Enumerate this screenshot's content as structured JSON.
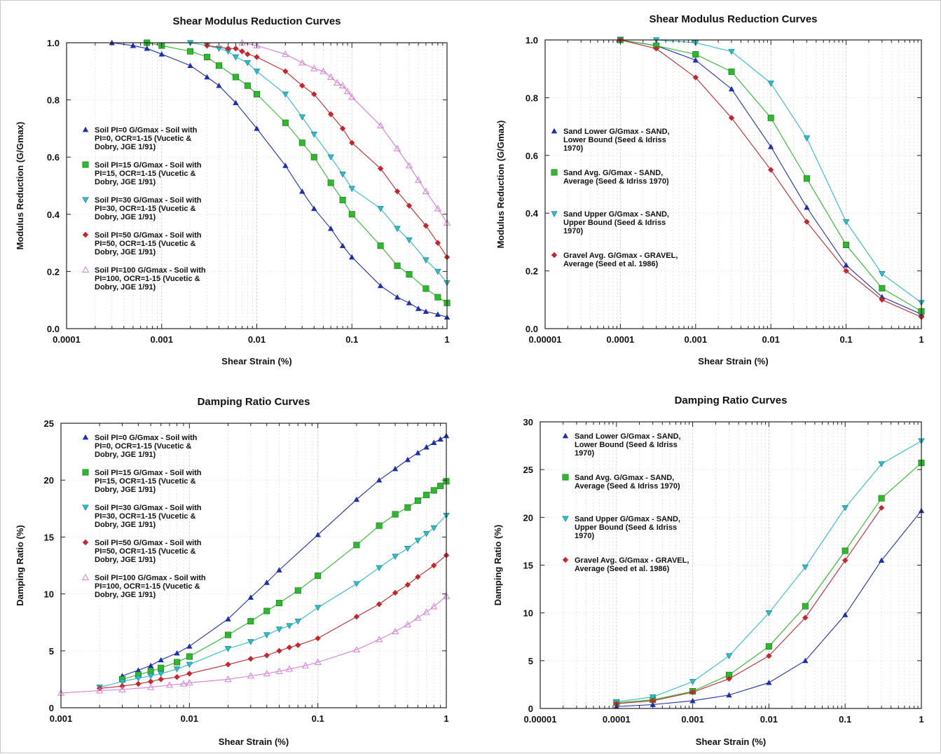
{
  "chart_data": [
    {
      "type": "line",
      "title": "Shear Modulus Reduction Curves",
      "xlabel": "Shear Strain (%)",
      "ylabel": "Modulus Reduction (G/Gmax)",
      "x_scale": "log",
      "xlim": [
        0.0001,
        1
      ],
      "ylim": [
        0,
        1
      ],
      "x_ticks": [
        "0.0001",
        "0.001",
        "0.01",
        "0.1",
        "1"
      ],
      "y_ticks": [
        "0.0",
        "0.2",
        "0.4",
        "0.6",
        "0.8",
        "1.0"
      ],
      "legend_position": "left",
      "grid": true,
      "series": [
        {
          "name": "Soil PI=0",
          "legend": [
            "Soil PI=0  G/Gmax - Soil with",
            "PI=0, OCR=1-15 (Vucetic &",
            "Dobry, JGE 1/91)"
          ],
          "color": "#1f2fa8",
          "marker": "triangle-up",
          "x": [
            0.0003,
            0.0005,
            0.0007,
            0.001,
            0.002,
            0.003,
            0.004,
            0.006,
            0.01,
            0.02,
            0.03,
            0.04,
            0.06,
            0.08,
            0.1,
            0.2,
            0.3,
            0.4,
            0.5,
            0.6,
            0.8,
            1.0
          ],
          "y": [
            1.0,
            0.99,
            0.98,
            0.96,
            0.92,
            0.88,
            0.85,
            0.79,
            0.7,
            0.57,
            0.48,
            0.42,
            0.35,
            0.29,
            0.25,
            0.15,
            0.11,
            0.09,
            0.07,
            0.06,
            0.05,
            0.04
          ]
        },
        {
          "name": "Soil PI=15",
          "legend": [
            "Soil PI=15  G/Gmax - Soil with",
            "PI=15, OCR=1-15 (Vucetic &",
            "Dobry, JGE 1/91)"
          ],
          "color": "#2fb82f",
          "marker": "square",
          "x": [
            0.0007,
            0.001,
            0.002,
            0.003,
            0.004,
            0.006,
            0.008,
            0.01,
            0.02,
            0.03,
            0.04,
            0.06,
            0.08,
            0.1,
            0.2,
            0.3,
            0.4,
            0.6,
            0.8,
            1.0
          ],
          "y": [
            1.0,
            0.99,
            0.97,
            0.95,
            0.92,
            0.88,
            0.85,
            0.82,
            0.72,
            0.65,
            0.6,
            0.51,
            0.45,
            0.4,
            0.29,
            0.22,
            0.19,
            0.14,
            0.11,
            0.09
          ]
        },
        {
          "name": "Soil PI=30",
          "legend": [
            "Soil PI=30  G/Gmax - Soil with",
            "PI=30, OCR=1-15 (Vucetic &",
            "Dobry, JGE 1/91)"
          ],
          "color": "#2fbcc8",
          "marker": "triangle-down",
          "x": [
            0.002,
            0.003,
            0.004,
            0.005,
            0.006,
            0.008,
            0.01,
            0.02,
            0.03,
            0.04,
            0.06,
            0.08,
            0.1,
            0.2,
            0.3,
            0.4,
            0.6,
            0.8,
            1.0
          ],
          "y": [
            1.0,
            0.99,
            0.98,
            0.97,
            0.95,
            0.93,
            0.9,
            0.82,
            0.74,
            0.68,
            0.6,
            0.54,
            0.49,
            0.42,
            0.35,
            0.31,
            0.24,
            0.2,
            0.16
          ]
        },
        {
          "name": "Soil PI=50",
          "legend": [
            "Soil PI=50  G/Gmax - Soil with",
            "PI=50, OCR=1-15 (Vucetic &",
            "Dobry, JGE 1/91)"
          ],
          "color": "#c0282d",
          "marker": "diamond",
          "x": [
            0.003,
            0.005,
            0.006,
            0.007,
            0.008,
            0.01,
            0.02,
            0.03,
            0.04,
            0.06,
            0.08,
            0.1,
            0.2,
            0.3,
            0.4,
            0.6,
            0.8,
            1.0
          ],
          "y": [
            0.99,
            0.98,
            0.98,
            0.97,
            0.96,
            0.95,
            0.9,
            0.85,
            0.82,
            0.75,
            0.7,
            0.65,
            0.56,
            0.48,
            0.43,
            0.36,
            0.3,
            0.25
          ]
        },
        {
          "name": "Soil PI=100",
          "legend": [
            "Soil PI=100 G/Gmax - Soil with",
            "PI=100, OCR=1-15 (Vucetic &",
            "Dobry, JGE 1/91)"
          ],
          "color": "#d77fd7",
          "marker": "triangle-up-open",
          "x": [
            0.007,
            0.01,
            0.02,
            0.03,
            0.04,
            0.05,
            0.06,
            0.07,
            0.08,
            0.09,
            0.1,
            0.2,
            0.3,
            0.4,
            0.5,
            0.6,
            0.8,
            1.0
          ],
          "y": [
            1.0,
            0.99,
            0.96,
            0.93,
            0.91,
            0.9,
            0.88,
            0.86,
            0.85,
            0.83,
            0.81,
            0.71,
            0.63,
            0.57,
            0.52,
            0.48,
            0.42,
            0.37
          ]
        }
      ]
    },
    {
      "type": "line",
      "title": "Shear Modulus Reduction Curves",
      "xlabel": "Shear Strain (%)",
      "ylabel": "Modulus Reduction (G/Gmax)",
      "x_scale": "log",
      "xlim": [
        1e-05,
        1
      ],
      "ylim": [
        0,
        1
      ],
      "x_ticks": [
        "0.00001",
        "0.0001",
        "0.001",
        "0.01",
        "0.1",
        "1"
      ],
      "y_ticks": [
        "0.0",
        "0.2",
        "0.4",
        "0.6",
        "0.8",
        "1.0"
      ],
      "legend_position": "left",
      "grid": true,
      "series": [
        {
          "name": "Sand Lower",
          "legend": [
            "Sand Lower  G/Gmax - SAND,",
            "Lower Bound (Seed & Idriss",
            "1970)"
          ],
          "color": "#1f2fa8",
          "marker": "triangle-up",
          "x": [
            0.0001,
            0.0003,
            0.001,
            0.003,
            0.01,
            0.03,
            0.1,
            0.3,
            1.0
          ],
          "y": [
            1.0,
            0.98,
            0.93,
            0.83,
            0.63,
            0.42,
            0.22,
            0.11,
            0.05
          ]
        },
        {
          "name": "Sand Avg.",
          "legend": [
            "Sand Avg.  G/Gmax - SAND,",
            "Average (Seed & Idriss 1970)"
          ],
          "color": "#2fb82f",
          "marker": "square",
          "x": [
            0.0001,
            0.0003,
            0.001,
            0.003,
            0.01,
            0.03,
            0.1,
            0.3,
            1.0
          ],
          "y": [
            1.0,
            0.98,
            0.95,
            0.89,
            0.73,
            0.52,
            0.29,
            0.14,
            0.06
          ]
        },
        {
          "name": "Sand Upper",
          "legend": [
            "Sand Upper  G/Gmax - SAND,",
            "Upper Bound (Seed & Idriss",
            "1970)"
          ],
          "color": "#2fbcc8",
          "marker": "triangle-down",
          "x": [
            0.0001,
            0.0003,
            0.001,
            0.003,
            0.01,
            0.03,
            0.1,
            0.3,
            1.0
          ],
          "y": [
            1.0,
            1.0,
            0.99,
            0.96,
            0.85,
            0.66,
            0.37,
            0.19,
            0.09
          ]
        },
        {
          "name": "Gravel Avg.",
          "legend": [
            "Gravel Avg. G/Gmax - GRAVEL,",
            "Average (Seed et al. 1986)"
          ],
          "color": "#c0282d",
          "marker": "diamond",
          "x": [
            0.0001,
            0.0003,
            0.001,
            0.003,
            0.01,
            0.03,
            0.1,
            0.3,
            1.0
          ],
          "y": [
            1.0,
            0.97,
            0.87,
            0.73,
            0.55,
            0.37,
            0.2,
            0.1,
            0.04
          ]
        }
      ]
    },
    {
      "type": "line",
      "title": "Damping Ratio Curves",
      "xlabel": "Shear Strain (%)",
      "ylabel": "Damping Ratio (%)",
      "x_scale": "log",
      "xlim": [
        0.001,
        1
      ],
      "ylim": [
        0,
        25
      ],
      "x_ticks": [
        "0.001",
        "0.01",
        "0.1",
        "1"
      ],
      "y_ticks": [
        "0",
        "5",
        "10",
        "15",
        "20",
        "25"
      ],
      "legend_position": "top-left",
      "grid": true,
      "series": [
        {
          "name": "Soil PI=0",
          "legend": [
            "Soil PI=0  G/Gmax - Soil with",
            "PI=0, OCR=1-15 (Vucetic &",
            "Dobry, JGE 1/91)"
          ],
          "color": "#1f2fa8",
          "marker": "triangle-up",
          "x": [
            0.003,
            0.004,
            0.005,
            0.006,
            0.008,
            0.01,
            0.02,
            0.03,
            0.04,
            0.05,
            0.1,
            0.2,
            0.3,
            0.4,
            0.5,
            0.6,
            0.7,
            0.8,
            0.9,
            1.0
          ],
          "y": [
            2.8,
            3.3,
            3.7,
            4.2,
            4.8,
            5.4,
            7.8,
            9.7,
            11.0,
            12.1,
            15.2,
            18.3,
            20.0,
            21.0,
            21.8,
            22.4,
            22.9,
            23.3,
            23.6,
            23.9
          ]
        },
        {
          "name": "Soil PI=15",
          "legend": [
            "Soil PI=15  G/Gmax - Soil with",
            "PI=15, OCR=1-15 (Vucetic &",
            "Dobry, JGE 1/91)"
          ],
          "color": "#2fb82f",
          "marker": "square",
          "x": [
            0.003,
            0.004,
            0.005,
            0.006,
            0.008,
            0.01,
            0.02,
            0.03,
            0.04,
            0.05,
            0.07,
            0.1,
            0.2,
            0.3,
            0.4,
            0.5,
            0.6,
            0.7,
            0.8,
            0.9,
            1.0
          ],
          "y": [
            2.5,
            2.9,
            3.2,
            3.5,
            4.0,
            4.5,
            6.4,
            7.6,
            8.5,
            9.2,
            10.3,
            11.6,
            14.3,
            16.0,
            17.0,
            17.6,
            18.2,
            18.7,
            19.1,
            19.5,
            19.9
          ]
        },
        {
          "name": "Soil PI=30",
          "legend": [
            "Soil PI=30  G/Gmax - Soil with",
            "PI=30, OCR=1-15 (Vucetic &",
            "Dobry, JGE 1/91)"
          ],
          "color": "#2fbcc8",
          "marker": "triangle-down",
          "x": [
            0.002,
            0.003,
            0.004,
            0.005,
            0.006,
            0.008,
            0.01,
            0.02,
            0.03,
            0.04,
            0.05,
            0.06,
            0.07,
            0.1,
            0.2,
            0.3,
            0.4,
            0.5,
            0.6,
            0.7,
            0.8,
            1.0
          ],
          "y": [
            1.8,
            2.3,
            2.6,
            2.8,
            3.0,
            3.4,
            3.8,
            5.2,
            5.8,
            6.4,
            6.9,
            7.2,
            7.6,
            8.8,
            10.9,
            12.3,
            13.3,
            14.0,
            14.7,
            15.3,
            15.8,
            16.9
          ]
        },
        {
          "name": "Soil PI=50",
          "legend": [
            "Soil PI=50  G/Gmax - Soil with",
            "PI=50, OCR=1-15 (Vucetic &",
            "Dobry, JGE 1/91)"
          ],
          "color": "#c0282d",
          "marker": "diamond",
          "x": [
            0.002,
            0.003,
            0.004,
            0.005,
            0.006,
            0.008,
            0.01,
            0.02,
            0.03,
            0.04,
            0.05,
            0.06,
            0.07,
            0.1,
            0.2,
            0.3,
            0.4,
            0.5,
            0.6,
            0.8,
            1.0
          ],
          "y": [
            1.7,
            1.9,
            2.1,
            2.3,
            2.5,
            2.7,
            3.0,
            3.8,
            4.3,
            4.6,
            5.0,
            5.3,
            5.5,
            6.1,
            8.0,
            9.1,
            10.1,
            10.8,
            11.5,
            12.5,
            13.4
          ]
        },
        {
          "name": "Soil PI=100",
          "legend": [
            "Soil PI=100 G/Gmax - Soil with",
            "PI=100, OCR=1-15 (Vucetic &",
            "Dobry, JGE 1/91)"
          ],
          "color": "#d77fd7",
          "marker": "triangle-up-open",
          "x": [
            0.001,
            0.002,
            0.003,
            0.005,
            0.007,
            0.009,
            0.01,
            0.02,
            0.03,
            0.04,
            0.05,
            0.06,
            0.08,
            0.1,
            0.2,
            0.3,
            0.4,
            0.5,
            0.6,
            0.7,
            0.8,
            1.0
          ],
          "y": [
            1.3,
            1.5,
            1.6,
            1.8,
            2.0,
            2.1,
            2.2,
            2.5,
            2.8,
            3.0,
            3.2,
            3.4,
            3.7,
            4.0,
            5.1,
            6.0,
            6.7,
            7.3,
            7.9,
            8.4,
            8.9,
            9.8
          ]
        }
      ]
    },
    {
      "type": "line",
      "title": "Damping Ratio Curves",
      "xlabel": "Shear Strain (%)",
      "ylabel": "Damping Ratio (%)",
      "x_scale": "log",
      "xlim": [
        1e-05,
        1
      ],
      "ylim": [
        0,
        30
      ],
      "x_ticks": [
        "0.00001",
        "0.0001",
        "0.001",
        "0.01",
        "0.1",
        "1"
      ],
      "y_ticks": [
        "0",
        "5",
        "10",
        "15",
        "20",
        "25",
        "30"
      ],
      "legend_position": "top-left",
      "grid": true,
      "series": [
        {
          "name": "Sand Lower",
          "legend": [
            "Sand Lower  G/Gmax - SAND,",
            "Lower Bound (Seed & Idriss",
            "1970)"
          ],
          "color": "#1f2fa8",
          "marker": "triangle-up",
          "x": [
            0.0001,
            0.0003,
            0.001,
            0.003,
            0.01,
            0.03,
            0.1,
            0.3,
            1.0
          ],
          "y": [
            0.2,
            0.4,
            0.8,
            1.4,
            2.7,
            5.0,
            9.8,
            15.5,
            20.7
          ]
        },
        {
          "name": "Sand Avg.",
          "legend": [
            "Sand Avg.  G/Gmax - SAND,",
            "Average (Seed & Idriss 1970)"
          ],
          "color": "#2fb82f",
          "marker": "square",
          "x": [
            0.0001,
            0.0003,
            0.001,
            0.003,
            0.01,
            0.03,
            0.1,
            0.3,
            1.0
          ],
          "y": [
            0.6,
            0.9,
            1.8,
            3.5,
            6.5,
            10.7,
            16.5,
            22.0,
            25.7
          ]
        },
        {
          "name": "Sand Upper",
          "legend": [
            "Sand Upper  G/Gmax - SAND,",
            "Upper Bound (Seed & Idriss",
            "1970)"
          ],
          "color": "#2fbcc8",
          "marker": "triangle-down",
          "x": [
            0.0001,
            0.0003,
            0.001,
            0.003,
            0.01,
            0.03,
            0.1,
            0.3,
            1.0
          ],
          "y": [
            0.7,
            1.2,
            2.8,
            5.5,
            10.0,
            14.8,
            21.0,
            25.6,
            28.0
          ]
        },
        {
          "name": "Gravel Avg.",
          "legend": [
            "Gravel Avg. G/Gmax - GRAVEL,",
            "Average (Seed et al. 1986)"
          ],
          "color": "#c0282d",
          "marker": "diamond",
          "x": [
            0.0001,
            0.0003,
            0.001,
            0.003,
            0.01,
            0.03,
            0.1,
            0.3
          ],
          "y": [
            0.5,
            0.8,
            1.7,
            3.1,
            5.5,
            9.5,
            15.5,
            21.0
          ]
        }
      ]
    }
  ]
}
